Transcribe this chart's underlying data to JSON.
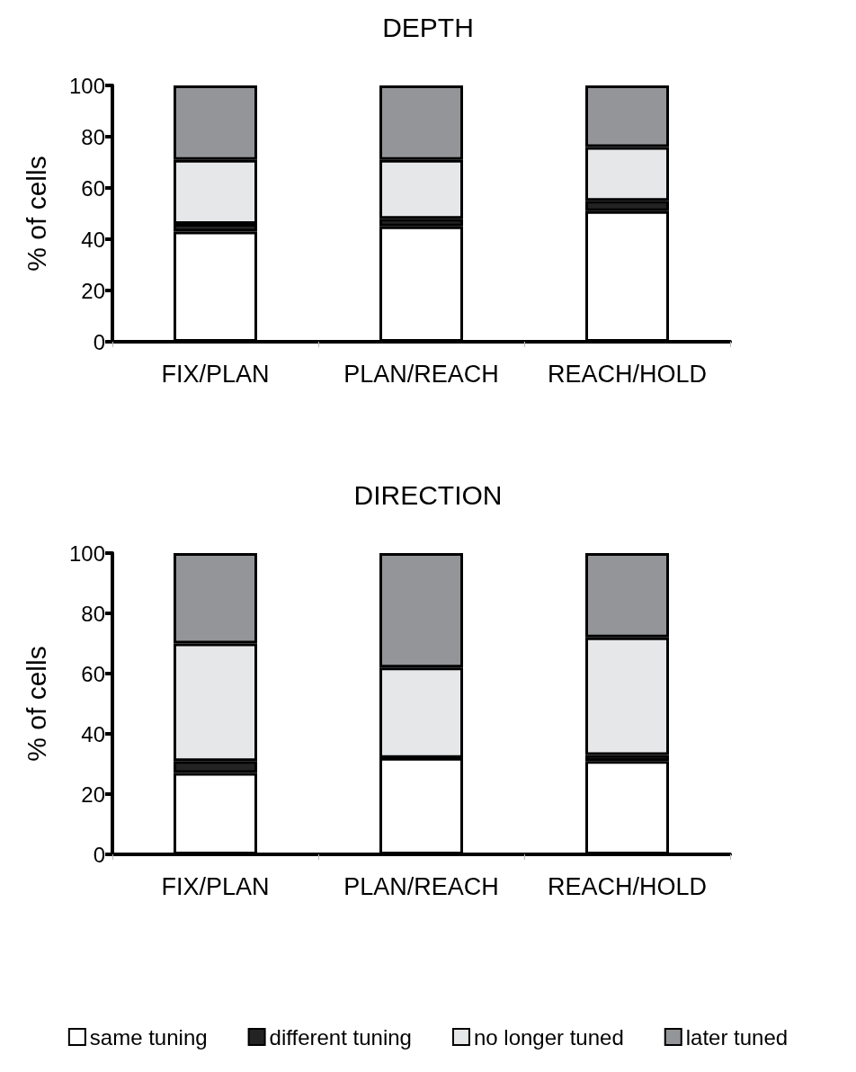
{
  "chart_data": [
    {
      "type": "bar",
      "title": "DEPTH",
      "ylabel": "% of cells",
      "categories": [
        "FIX/PLAN",
        "PLAN/REACH",
        "REACH/HOLD"
      ],
      "stacked": true,
      "ylim": [
        0,
        100
      ],
      "yticks": [
        0,
        20,
        40,
        60,
        80,
        100
      ],
      "grid": false,
      "legend": false,
      "series": [
        {
          "color": "#ffffff",
          "values": [
            43,
            45,
            51
          ]
        },
        {
          "color": "#232323",
          "values": [
            3,
            3,
            4
          ]
        },
        {
          "color": "#e6e7e8",
          "values": [
            25,
            23,
            21
          ]
        },
        {
          "color": "#939598",
          "values": [
            29,
            29,
            24
          ]
        }
      ]
    },
    {
      "type": "bar",
      "title": "DIRECTION",
      "ylabel": "% of cells",
      "categories": [
        "FIX/PLAN",
        "PLAN/REACH",
        "REACH/HOLD"
      ],
      "stacked": true,
      "ylim": [
        0,
        100
      ],
      "yticks": [
        0,
        20,
        40,
        60,
        80,
        100
      ],
      "grid": false,
      "legend": "bottom",
      "series": [
        {
          "name": "same tuning",
          "color": "#ffffff",
          "values": [
            27,
            32,
            31
          ]
        },
        {
          "name": "different tuning",
          "color": "#232323",
          "values": [
            4,
            0,
            2
          ]
        },
        {
          "name": "no longer tuned",
          "color": "#e6e7e8",
          "values": [
            39,
            30,
            39
          ]
        },
        {
          "name": "later tuned",
          "color": "#939598",
          "values": [
            30,
            38,
            28
          ]
        }
      ]
    }
  ]
}
